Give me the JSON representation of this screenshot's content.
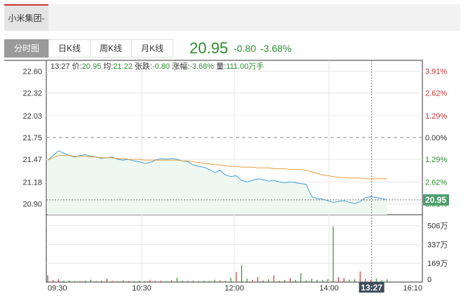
{
  "header": {
    "stock_name": "小米集团-W"
  },
  "tabs": [
    {
      "label": "分时图",
      "active": true
    },
    {
      "label": "日K线",
      "active": false
    },
    {
      "label": "周K线",
      "active": false
    },
    {
      "label": "月K线",
      "active": false
    }
  ],
  "quote": {
    "price": "20.95",
    "change": "-0.80",
    "change_pct": "-3.68%",
    "color": "#2e8b2e"
  },
  "info_bar": {
    "time": "13:27",
    "price_label": "价:",
    "price": "20.95",
    "avg_label": "均:",
    "avg": "21.22",
    "change_label": "张跌:",
    "change": "-0.80",
    "pct_label": "涨幅:",
    "pct": "-3.68%",
    "vol_label": "量:",
    "vol": "111.00万手"
  },
  "crosshair": {
    "time_label": "13:27",
    "price_label": "20.95"
  },
  "chart_data": {
    "type": "line",
    "x_ticks": [
      "09:30",
      "10:30",
      "12:00",
      "14:00",
      "16:10"
    ],
    "y_ticks": [
      "22.60",
      "22.32",
      "22.03",
      "21.75",
      "21.47",
      "21.18",
      "20.90"
    ],
    "y_ticks_right": [
      "3.91%",
      "2.62%",
      "1.29%",
      "0.00%",
      "1.29%",
      "2.62%",
      "3.91%"
    ],
    "ylim": [
      20.76,
      22.74
    ],
    "prev_close": 21.75,
    "series": [
      {
        "color": "#3fa0d8",
        "values": [
          21.46,
          21.52,
          21.58,
          21.55,
          21.52,
          21.5,
          21.52,
          21.53,
          21.51,
          21.5,
          21.48,
          21.49,
          21.5,
          21.47,
          21.46,
          21.47,
          21.45,
          21.44,
          21.42,
          21.43,
          21.46,
          21.48,
          21.47,
          21.48,
          21.47,
          21.45,
          21.44,
          21.4,
          21.38,
          21.37,
          21.34,
          21.3,
          21.33,
          21.27,
          21.25,
          21.26,
          21.2,
          21.18,
          21.2,
          21.22,
          21.21,
          21.19,
          21.2,
          21.18,
          21.17,
          21.18,
          21.17,
          21.16,
          21.15,
          20.99,
          20.97,
          20.96,
          20.94,
          20.92,
          20.93,
          20.94,
          20.92,
          20.9,
          20.93,
          20.98,
          20.99,
          20.98,
          20.97,
          20.95
        ]
      },
      {
        "color": "#e8a040",
        "values": [
          21.46,
          21.49,
          21.52,
          21.52,
          21.52,
          21.51,
          21.51,
          21.51,
          21.5,
          21.5,
          21.49,
          21.49,
          21.49,
          21.48,
          21.48,
          21.47,
          21.47,
          21.47,
          21.46,
          21.46,
          21.46,
          21.46,
          21.46,
          21.46,
          21.46,
          21.45,
          21.45,
          21.44,
          21.43,
          21.42,
          21.41,
          21.4,
          21.4,
          21.39,
          21.38,
          21.38,
          21.37,
          21.37,
          21.37,
          21.36,
          21.36,
          21.36,
          21.35,
          21.35,
          21.35,
          21.34,
          21.34,
          21.34,
          21.33,
          21.31,
          21.29,
          21.27,
          21.26,
          21.25,
          21.24,
          21.24,
          21.23,
          21.23,
          21.23,
          21.22,
          21.22,
          21.22,
          21.22,
          21.22
        ]
      }
    ],
    "volume": {
      "y_ticks": [
        "506万",
        "337万",
        "169万",
        "0"
      ],
      "ylim": [
        0,
        580
      ],
      "values": [
        60,
        18,
        25,
        12,
        15,
        10,
        8,
        12,
        20,
        10,
        14,
        30,
        12,
        8,
        15,
        10,
        9,
        12,
        8,
        20,
        10,
        12,
        8,
        15,
        40,
        12,
        10,
        14,
        8,
        12,
        10,
        20,
        15,
        12,
        40,
        90,
        150,
        30,
        20,
        45,
        15,
        25,
        60,
        12,
        18,
        35,
        20,
        80,
        15,
        30,
        20,
        18,
        25,
        500,
        45,
        35,
        22,
        25,
        95,
        30,
        20,
        30,
        18,
        25
      ],
      "colors": [
        "#cc3333",
        "#2e8b2e"
      ]
    }
  }
}
